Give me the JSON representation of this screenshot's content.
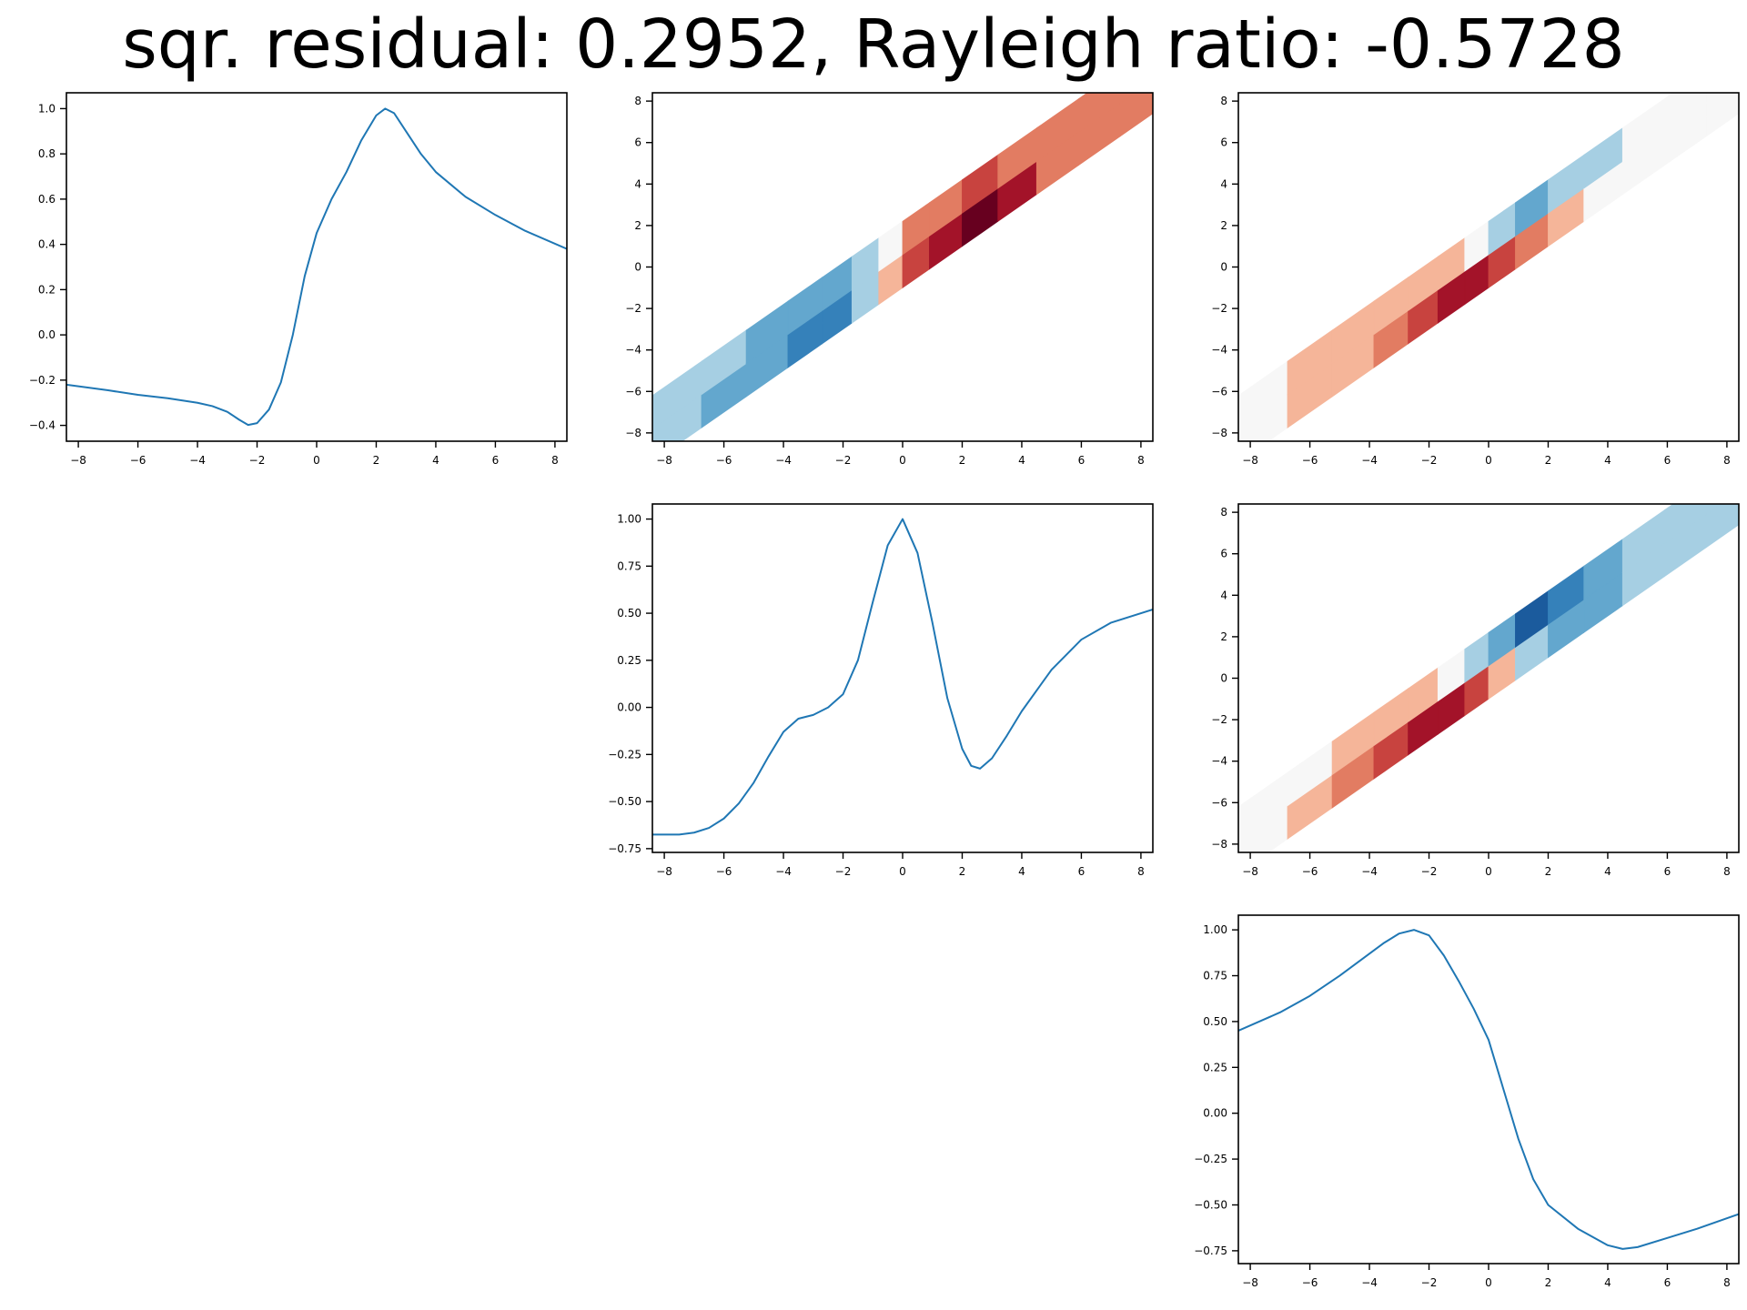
{
  "title": "sqr. residual: 0.2952, Rayleigh ratio: -0.5728",
  "chart_data": [
    {
      "type": "line",
      "panel": "row1-col1",
      "xlim": [
        -8.4,
        8.4
      ],
      "ylim": [
        -0.47,
        1.07
      ],
      "xticks": [
        -8,
        -6,
        -4,
        -2,
        0,
        2,
        4,
        6,
        8
      ],
      "yticks": [
        -0.4,
        -0.2,
        0.0,
        0.2,
        0.4,
        0.6,
        0.8,
        1.0
      ],
      "ytick_labels": [
        "−0.4",
        "−0.2",
        "0.0",
        "0.2",
        "0.4",
        "0.6",
        "0.8",
        "1.0"
      ],
      "color": "#1f77b4",
      "x": [
        -8.4,
        -7,
        -6,
        -5,
        -4,
        -3.5,
        -3,
        -2.6,
        -2.3,
        -2,
        -1.6,
        -1.2,
        -0.8,
        -0.4,
        0,
        0.5,
        1,
        1.5,
        2,
        2.3,
        2.6,
        3,
        3.5,
        4,
        5,
        6,
        7,
        8.4
      ],
      "y": [
        -0.22,
        -0.245,
        -0.265,
        -0.28,
        -0.3,
        -0.315,
        -0.34,
        -0.375,
        -0.398,
        -0.39,
        -0.33,
        -0.21,
        0.0,
        0.26,
        0.45,
        0.6,
        0.72,
        0.86,
        0.97,
        1.0,
        0.98,
        0.9,
        0.8,
        0.72,
        0.61,
        0.53,
        0.46,
        0.38
      ]
    },
    {
      "type": "heatmap",
      "panel": "row1-col2",
      "xlim": [
        -8.4,
        8.4
      ],
      "ylim": [
        -8.4,
        8.4
      ],
      "xticks": [
        -8,
        -6,
        -4,
        -2,
        0,
        2,
        4,
        6,
        8
      ],
      "yticks": [
        -8,
        -6,
        -4,
        -2,
        0,
        2,
        4,
        6,
        8
      ],
      "colormap": "RdBu_r",
      "band_lower_offset": -1.0,
      "band_upper_offset": 2.2,
      "cells": [
        {
          "s": -7.5,
          "values": [
            -0.25,
            -0.2
          ]
        },
        {
          "s": -6,
          "values": [
            -0.35,
            -0.3
          ]
        },
        {
          "s": -4.5,
          "values": [
            -0.4,
            -0.35
          ]
        },
        {
          "s": -3.2,
          "values": [
            -0.55,
            -0.45
          ]
        },
        {
          "s": -2.2,
          "values": [
            -0.7,
            -0.5
          ]
        },
        {
          "s": -1.2,
          "values": [
            -0.3,
            -0.25
          ]
        },
        {
          "s": -0.4,
          "values": [
            0.2,
            -0.1
          ]
        },
        {
          "s": 0.4,
          "values": [
            0.6,
            0.3
          ]
        },
        {
          "s": 1.4,
          "values": [
            0.85,
            0.45
          ]
        },
        {
          "s": 2.6,
          "values": [
            0.95,
            0.5
          ]
        },
        {
          "s": 3.8,
          "values": [
            0.7,
            0.4
          ]
        },
        {
          "s": 5.2,
          "values": [
            0.4,
            0.3
          ]
        },
        {
          "s": 6.6,
          "values": [
            0.35,
            0.3
          ]
        },
        {
          "s": 8,
          "values": [
            0.3,
            0.3
          ]
        }
      ]
    },
    {
      "type": "heatmap",
      "panel": "row1-col3",
      "xlim": [
        -8.4,
        8.4
      ],
      "ylim": [
        -8.4,
        8.4
      ],
      "xticks": [
        -8,
        -6,
        -4,
        -2,
        0,
        2,
        4,
        6,
        8
      ],
      "yticks": [
        -8,
        -6,
        -4,
        -2,
        0,
        2,
        4,
        6,
        8
      ],
      "colormap": "RdBu_r",
      "band_lower_offset": -1.0,
      "band_upper_offset": 2.2,
      "cells": [
        {
          "s": -7.5,
          "values": [
            0.02,
            0.0
          ]
        },
        {
          "s": -6,
          "values": [
            0.15,
            0.1
          ]
        },
        {
          "s": -4.5,
          "values": [
            0.2,
            0.15
          ]
        },
        {
          "s": -3.2,
          "values": [
            0.35,
            0.2
          ]
        },
        {
          "s": -2.2,
          "values": [
            0.55,
            0.25
          ]
        },
        {
          "s": -1.2,
          "values": [
            0.75,
            0.1
          ]
        },
        {
          "s": -0.4,
          "values": [
            0.85,
            -0.1
          ]
        },
        {
          "s": 0.4,
          "values": [
            0.6,
            -0.25
          ]
        },
        {
          "s": 1.4,
          "values": [
            0.35,
            -0.35
          ]
        },
        {
          "s": 2.6,
          "values": [
            0.15,
            -0.3
          ]
        },
        {
          "s": 3.8,
          "values": [
            0.05,
            -0.2
          ]
        },
        {
          "s": 5.2,
          "values": [
            0.0,
            -0.05
          ]
        },
        {
          "s": 6.6,
          "values": [
            0.0,
            0.0
          ]
        },
        {
          "s": 8,
          "values": [
            0.0,
            0.0
          ]
        }
      ]
    },
    {
      "type": "line",
      "panel": "row2-col2",
      "xlim": [
        -8.4,
        8.4
      ],
      "ylim": [
        -0.77,
        1.08
      ],
      "xticks": [
        -8,
        -6,
        -4,
        -2,
        0,
        2,
        4,
        6,
        8
      ],
      "yticks": [
        -0.75,
        -0.5,
        -0.25,
        0.0,
        0.25,
        0.5,
        0.75,
        1.0
      ],
      "ytick_labels": [
        "−0.75",
        "−0.50",
        "−0.25",
        "0.00",
        "0.25",
        "0.50",
        "0.75",
        "1.00"
      ],
      "color": "#1f77b4",
      "x": [
        -8.4,
        -7.5,
        -7,
        -6.5,
        -6,
        -5.5,
        -5,
        -4.5,
        -4,
        -3.5,
        -3,
        -2.5,
        -2,
        -1.5,
        -1,
        -0.5,
        0,
        0.5,
        1,
        1.5,
        2,
        2.3,
        2.6,
        3,
        3.5,
        4,
        5,
        6,
        7,
        8.4
      ],
      "y": [
        -0.675,
        -0.675,
        -0.665,
        -0.64,
        -0.59,
        -0.51,
        -0.4,
        -0.26,
        -0.13,
        -0.06,
        -0.04,
        0.0,
        0.07,
        0.25,
        0.56,
        0.86,
        1.0,
        0.82,
        0.45,
        0.05,
        -0.22,
        -0.31,
        -0.325,
        -0.27,
        -0.15,
        -0.02,
        0.2,
        0.36,
        0.45,
        0.52
      ]
    },
    {
      "type": "heatmap",
      "panel": "row2-col3",
      "xlim": [
        -8.4,
        8.4
      ],
      "ylim": [
        -8.4,
        8.4
      ],
      "xticks": [
        -8,
        -6,
        -4,
        -2,
        0,
        2,
        4,
        6,
        8
      ],
      "yticks": [
        -8,
        -6,
        -4,
        -2,
        0,
        2,
        4,
        6,
        8
      ],
      "colormap": "RdBu_r",
      "band_lower_offset": -1.0,
      "band_upper_offset": 2.2,
      "cells": [
        {
          "s": -7.5,
          "values": [
            0.05,
            0.0
          ]
        },
        {
          "s": -6,
          "values": [
            0.15,
            0.05
          ]
        },
        {
          "s": -4.5,
          "values": [
            0.3,
            0.1
          ]
        },
        {
          "s": -3.2,
          "values": [
            0.5,
            0.15
          ]
        },
        {
          "s": -2.2,
          "values": [
            0.7,
            0.1
          ]
        },
        {
          "s": -1.2,
          "values": [
            0.85,
            0.0
          ]
        },
        {
          "s": -0.4,
          "values": [
            0.65,
            -0.2
          ]
        },
        {
          "s": 0.4,
          "values": [
            0.2,
            -0.5
          ]
        },
        {
          "s": 1.4,
          "values": [
            -0.2,
            -0.75
          ]
        },
        {
          "s": 2.6,
          "values": [
            -0.45,
            -0.7
          ]
        },
        {
          "s": 3.8,
          "values": [
            -0.4,
            -0.5
          ]
        },
        {
          "s": 5.2,
          "values": [
            -0.3,
            -0.3
          ]
        },
        {
          "s": 6.6,
          "values": [
            -0.2,
            -0.2
          ]
        },
        {
          "s": 8,
          "values": [
            -0.15,
            -0.15
          ]
        }
      ]
    },
    {
      "type": "line",
      "panel": "row3-col3",
      "xlim": [
        -8.4,
        8.4
      ],
      "ylim": [
        -0.82,
        1.08
      ],
      "xticks": [
        -8,
        -6,
        -4,
        -2,
        0,
        2,
        4,
        6,
        8
      ],
      "yticks": [
        -0.75,
        -0.5,
        -0.25,
        0.0,
        0.25,
        0.5,
        0.75,
        1.0
      ],
      "ytick_labels": [
        "−0.75",
        "−0.50",
        "−0.25",
        "0.00",
        "0.25",
        "0.50",
        "0.75",
        "1.00"
      ],
      "color": "#1f77b4",
      "x": [
        -8.4,
        -7,
        -6,
        -5,
        -4,
        -3.5,
        -3,
        -2.5,
        -2,
        -1.5,
        -1,
        -0.5,
        0,
        0.5,
        1,
        1.5,
        2,
        3,
        4,
        4.5,
        5,
        6,
        7,
        8.4
      ],
      "y": [
        0.45,
        0.55,
        0.64,
        0.75,
        0.87,
        0.93,
        0.98,
        1.0,
        0.97,
        0.86,
        0.72,
        0.57,
        0.4,
        0.13,
        -0.14,
        -0.36,
        -0.5,
        -0.63,
        -0.72,
        -0.74,
        -0.73,
        -0.68,
        -0.63,
        -0.55
      ]
    }
  ]
}
